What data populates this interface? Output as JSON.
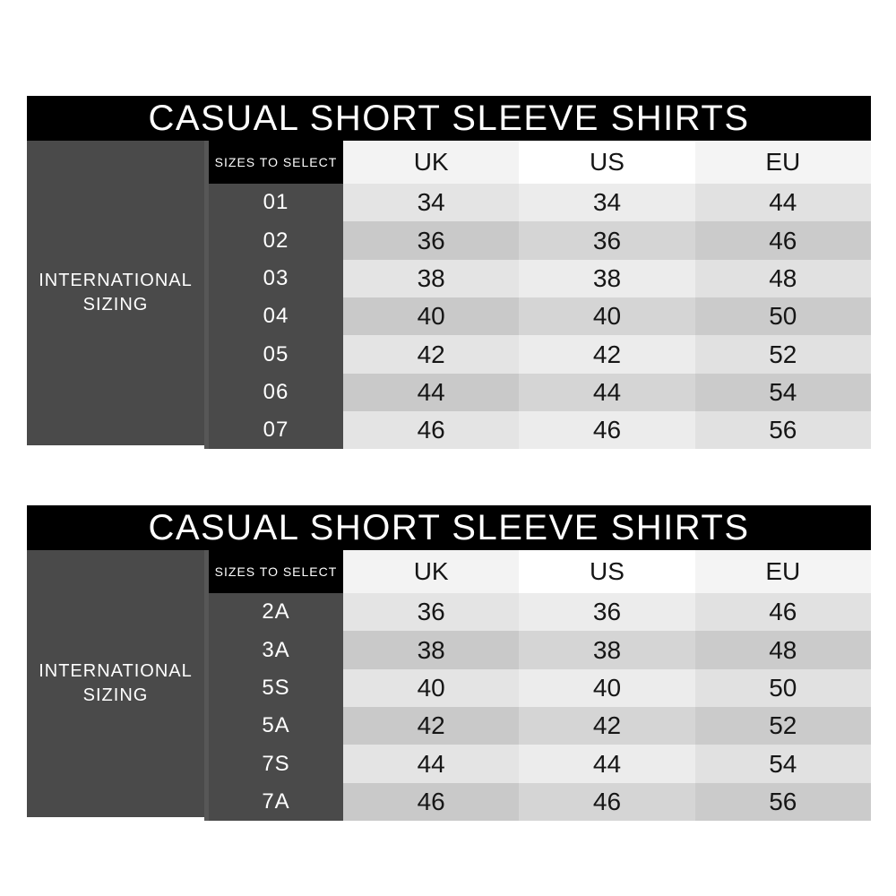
{
  "colors": {
    "background": "#ffffff",
    "black": "#000000",
    "dark_gray_block": "#4a4a4a",
    "block_divider": "#575757",
    "white_text": "#ffffff",
    "cell_text": "#161616",
    "uk": {
      "header": "#f3f3f3",
      "stripe_light": "#e4e4e4",
      "stripe_dark": "#c9c9c9"
    },
    "us": {
      "header": "#ffffff",
      "stripe_light": "#ececec",
      "stripe_dark": "#d5d5d5"
    },
    "eu": {
      "header": "#f4f4f4",
      "stripe_light": "#e1e1e1",
      "stripe_dark": "#cbcbcb"
    }
  },
  "tables": [
    {
      "title": "CASUAL SHORT SLEEVE SHIRTS",
      "left_label": [
        "INTERNATIONAL",
        "SIZING"
      ],
      "sizes_header": "SIZES TO SELECT",
      "columns": [
        "UK",
        "US",
        "EU"
      ],
      "rows": [
        {
          "size": "01",
          "values": [
            "34",
            "34",
            "44"
          ]
        },
        {
          "size": "02",
          "values": [
            "36",
            "36",
            "46"
          ]
        },
        {
          "size": "03",
          "values": [
            "38",
            "38",
            "48"
          ]
        },
        {
          "size": "04",
          "values": [
            "40",
            "40",
            "50"
          ]
        },
        {
          "size": "05",
          "values": [
            "42",
            "42",
            "52"
          ]
        },
        {
          "size": "06",
          "values": [
            "44",
            "44",
            "54"
          ]
        },
        {
          "size": "07",
          "values": [
            "46",
            "46",
            "56"
          ]
        }
      ]
    },
    {
      "title": "CASUAL SHORT SLEEVE SHIRTS",
      "left_label": [
        "INTERNATIONAL",
        "SIZING"
      ],
      "sizes_header": "SIZES TO SELECT",
      "columns": [
        "UK",
        "US",
        "EU"
      ],
      "rows": [
        {
          "size": "2A",
          "values": [
            "36",
            "36",
            "46"
          ]
        },
        {
          "size": "3A",
          "values": [
            "38",
            "38",
            "48"
          ]
        },
        {
          "size": "5S",
          "values": [
            "40",
            "40",
            "50"
          ]
        },
        {
          "size": "5A",
          "values": [
            "42",
            "42",
            "52"
          ]
        },
        {
          "size": "7S",
          "values": [
            "44",
            "44",
            "54"
          ]
        },
        {
          "size": "7A",
          "values": [
            "46",
            "46",
            "56"
          ]
        }
      ]
    }
  ],
  "chart_data": [
    {
      "type": "table",
      "title": "CASUAL SHORT SLEEVE SHIRTS",
      "row_group_label": "INTERNATIONAL SIZING",
      "columns": [
        "SIZES TO SELECT",
        "UK",
        "US",
        "EU"
      ],
      "rows": [
        [
          "01",
          34,
          34,
          44
        ],
        [
          "02",
          36,
          36,
          46
        ],
        [
          "03",
          38,
          38,
          48
        ],
        [
          "04",
          40,
          40,
          50
        ],
        [
          "05",
          42,
          42,
          52
        ],
        [
          "06",
          44,
          44,
          54
        ],
        [
          "07",
          46,
          46,
          56
        ]
      ]
    },
    {
      "type": "table",
      "title": "CASUAL SHORT SLEEVE SHIRTS",
      "row_group_label": "INTERNATIONAL SIZING",
      "columns": [
        "SIZES TO SELECT",
        "UK",
        "US",
        "EU"
      ],
      "rows": [
        [
          "2A",
          36,
          36,
          46
        ],
        [
          "3A",
          38,
          38,
          48
        ],
        [
          "5S",
          40,
          40,
          50
        ],
        [
          "5A",
          42,
          42,
          52
        ],
        [
          "7S",
          44,
          44,
          54
        ],
        [
          "7A",
          46,
          46,
          56
        ]
      ]
    }
  ]
}
